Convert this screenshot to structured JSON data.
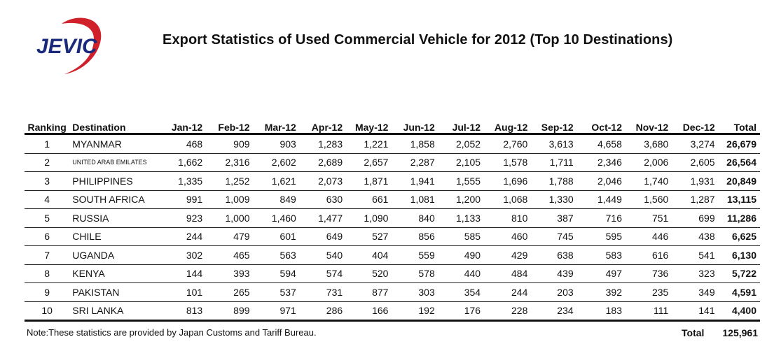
{
  "logo": {
    "text": "JEVIC",
    "colors": {
      "text": "#1b2a7d",
      "swoosh": "#d0202a"
    }
  },
  "title": "Export Statistics of Used Commercial Vehicle for 2012 (Top 10 Destinations)",
  "table": {
    "headers": [
      "Ranking",
      "Destination",
      "Jan-12",
      "Feb-12",
      "Mar-12",
      "Apr-12",
      "May-12",
      "Jun-12",
      "Jul-12",
      "Aug-12",
      "Sep-12",
      "Oct-12",
      "Nov-12",
      "Dec-12",
      "Total"
    ],
    "rows": [
      {
        "rank": "1",
        "destination": "MYANMAR",
        "values": [
          "468",
          "909",
          "903",
          "1,283",
          "1,221",
          "1,858",
          "2,052",
          "2,760",
          "3,613",
          "4,658",
          "3,680",
          "3,274"
        ],
        "total": "26,679"
      },
      {
        "rank": "2",
        "destination": "UNITED ARAB EMILATES",
        "small": true,
        "values": [
          "1,662",
          "2,316",
          "2,602",
          "2,689",
          "2,657",
          "2,287",
          "2,105",
          "1,578",
          "1,711",
          "2,346",
          "2,006",
          "2,605"
        ],
        "total": "26,564"
      },
      {
        "rank": "3",
        "destination": "PHILIPPINES",
        "values": [
          "1,335",
          "1,252",
          "1,621",
          "2,073",
          "1,871",
          "1,941",
          "1,555",
          "1,696",
          "1,788",
          "2,046",
          "1,740",
          "1,931"
        ],
        "total": "20,849"
      },
      {
        "rank": "4",
        "destination": "SOUTH AFRICA",
        "values": [
          "991",
          "1,009",
          "849",
          "630",
          "661",
          "1,081",
          "1,200",
          "1,068",
          "1,330",
          "1,449",
          "1,560",
          "1,287"
        ],
        "total": "13,115"
      },
      {
        "rank": "5",
        "destination": "RUSSIA",
        "values": [
          "923",
          "1,000",
          "1,460",
          "1,477",
          "1,090",
          "840",
          "1,133",
          "810",
          "387",
          "716",
          "751",
          "699"
        ],
        "total": "11,286"
      },
      {
        "rank": "6",
        "destination": "CHILE",
        "values": [
          "244",
          "479",
          "601",
          "649",
          "527",
          "856",
          "585",
          "460",
          "745",
          "595",
          "446",
          "438"
        ],
        "total": "6,625"
      },
      {
        "rank": "7",
        "destination": "UGANDA",
        "values": [
          "302",
          "465",
          "563",
          "540",
          "404",
          "559",
          "490",
          "429",
          "638",
          "583",
          "616",
          "541"
        ],
        "total": "6,130"
      },
      {
        "rank": "8",
        "destination": "KENYA",
        "values": [
          "144",
          "393",
          "594",
          "574",
          "520",
          "578",
          "440",
          "484",
          "439",
          "497",
          "736",
          "323"
        ],
        "total": "5,722"
      },
      {
        "rank": "9",
        "destination": "PAKISTAN",
        "values": [
          "101",
          "265",
          "537",
          "731",
          "877",
          "303",
          "354",
          "244",
          "203",
          "392",
          "235",
          "349"
        ],
        "total": "4,591"
      },
      {
        "rank": "10",
        "destination": "SRI LANKA",
        "values": [
          "813",
          "899",
          "971",
          "286",
          "166",
          "192",
          "176",
          "228",
          "234",
          "183",
          "111",
          "141"
        ],
        "total": "4,400"
      }
    ]
  },
  "footer": {
    "note": "Note:These statistics are provided by Japan Customs and Tariff Bureau.",
    "total_label": "Total",
    "total_value": "125,961"
  }
}
